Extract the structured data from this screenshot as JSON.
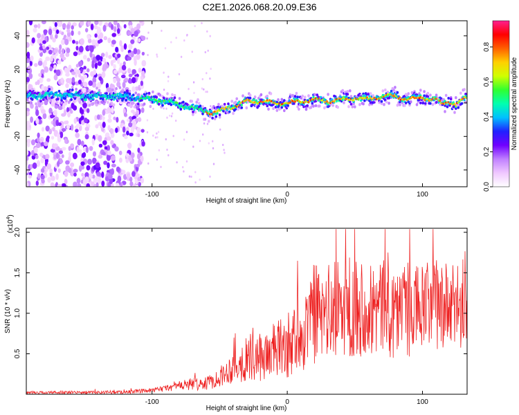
{
  "title": "C2E1.2026.068.20.09.E36",
  "chart_data": [
    {
      "type": "heatmap",
      "name": "spectrogram",
      "xlabel": "Height of straight line (km)",
      "ylabel": "Frequency (Hz)",
      "xlim": [
        -193,
        133
      ],
      "ylim": [
        -50,
        49
      ],
      "xticks": [
        -100,
        0,
        100
      ],
      "yticks": [
        -40,
        -20,
        0,
        20,
        40
      ],
      "colorbar": {
        "label": "Normalized spectral amplitude",
        "range": [
          0,
          0.95
        ],
        "ticks": [
          0.0,
          0.2,
          0.4,
          0.6,
          0.8
        ],
        "tick_labels": [
          "0.0",
          "0.2",
          "0.4",
          "0.6",
          "0.8"
        ],
        "colors": [
          "#ffffff",
          "#f0c8ff",
          "#c080ff",
          "#7000ff",
          "#2020ff",
          "#00c0ff",
          "#00ffb0",
          "#30ff30",
          "#d0ff00",
          "#ffd000",
          "#ff6000",
          "#ff0000",
          "#ff2090"
        ]
      },
      "ridge_track": {
        "x": [
          -193,
          -170,
          -150,
          -130,
          -110,
          -100,
          -90,
          -80,
          -70,
          -60,
          -55,
          -50,
          -45,
          -40,
          -35,
          -30,
          -20,
          -10,
          0,
          10,
          20,
          30,
          40,
          50,
          60,
          70,
          80,
          90,
          100,
          110,
          115,
          120,
          125,
          130,
          133
        ],
        "freq": [
          4,
          5,
          4,
          4,
          3,
          2,
          1,
          -1,
          -3,
          -5,
          -6,
          -5,
          -3,
          -2,
          -1,
          1,
          1,
          0,
          0,
          1,
          2,
          1,
          2,
          3,
          2,
          4,
          4,
          2,
          3,
          2,
          -1,
          1,
          -1,
          2,
          3
        ]
      }
    },
    {
      "type": "line",
      "name": "snr",
      "xlabel": "Height of straight line (km)",
      "ylabel": "SNR (10 * v/v)",
      "multiplier_label": "(x10",
      "multiplier_exponent": "4",
      "xlim": [
        -193,
        133
      ],
      "ylim": [
        0,
        2.05
      ],
      "xticks": [
        -100,
        0,
        100
      ],
      "yticks": [
        0.5,
        1.0,
        1.5,
        2.0
      ],
      "ytick_labels": [
        "0.5",
        "1.0",
        "1.5",
        "2.0"
      ],
      "color": "#ee2222",
      "envelope": {
        "x": [
          -193,
          -150,
          -120,
          -100,
          -90,
          -80,
          -70,
          -60,
          -50,
          -40,
          -30,
          -20,
          -10,
          0,
          10,
          20,
          30,
          40,
          50,
          60,
          70,
          80,
          90,
          100,
          110,
          120,
          133
        ],
        "mean": [
          0.02,
          0.02,
          0.025,
          0.04,
          0.07,
          0.1,
          0.12,
          0.12,
          0.2,
          0.32,
          0.4,
          0.42,
          0.5,
          0.55,
          0.7,
          0.85,
          0.95,
          1.0,
          1.05,
          1.0,
          1.0,
          0.98,
          0.98,
          1.0,
          1.05,
          1.0,
          1.0
        ],
        "amplitude": [
          0.015,
          0.02,
          0.02,
          0.03,
          0.04,
          0.06,
          0.08,
          0.08,
          0.12,
          0.2,
          0.28,
          0.3,
          0.35,
          0.4,
          0.5,
          0.55,
          0.6,
          0.62,
          0.65,
          0.6,
          0.6,
          0.6,
          0.6,
          0.55,
          0.58,
          0.55,
          0.55
        ]
      }
    }
  ]
}
